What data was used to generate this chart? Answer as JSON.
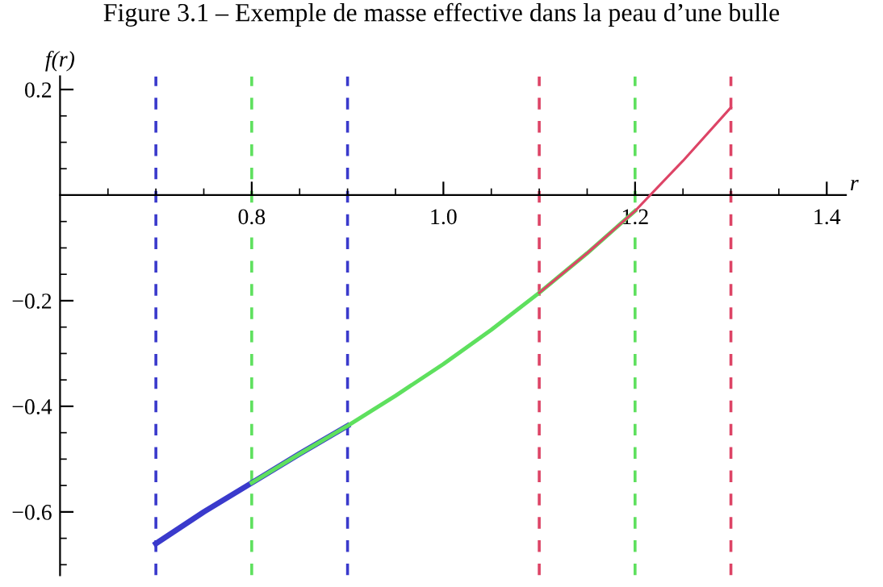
{
  "chart_data": {
    "type": "line",
    "title": "Figure 3.1 – Exemple de masse effective dans la peau d’une bulle",
    "xlabel": "r",
    "ylabel": "f(r)",
    "series": [
      {
        "color": "#3a3acc",
        "x": [
          0.7,
          0.75,
          0.8,
          0.85,
          0.9
        ],
        "values": [
          -0.66,
          -0.6,
          -0.545,
          -0.49,
          -0.437
        ]
      },
      {
        "color": "#5ee05e",
        "x": [
          0.8,
          0.85,
          0.9,
          0.95,
          1.0,
          1.05,
          1.1,
          1.15,
          1.2
        ],
        "values": [
          -0.545,
          -0.49,
          -0.437,
          -0.38,
          -0.32,
          -0.255,
          -0.185,
          -0.11,
          -0.03
        ]
      },
      {
        "color": "#dd4466",
        "x": [
          1.1,
          1.15,
          1.2,
          1.25,
          1.3
        ],
        "values": [
          -0.185,
          -0.11,
          -0.03,
          0.065,
          0.166
        ]
      }
    ],
    "ref_lines": [
      {
        "axis": "x",
        "value": 0.7,
        "color": "#3a3acc",
        "line_style": "dashed"
      },
      {
        "axis": "x",
        "value": 0.9,
        "color": "#3a3acc",
        "line_style": "dashed"
      },
      {
        "axis": "x",
        "value": 0.8,
        "color": "#5ee05e",
        "line_style": "dashed"
      },
      {
        "axis": "x",
        "value": 1.2,
        "color": "#5ee05e",
        "line_style": "dashed"
      },
      {
        "axis": "x",
        "value": 1.1,
        "color": "#dd4466",
        "line_style": "dashed"
      },
      {
        "axis": "x",
        "value": 1.3,
        "color": "#dd4466",
        "line_style": "dashed"
      }
    ],
    "xlim": [
      0.6,
      1.42
    ],
    "ylim": [
      -0.72,
      0.225
    ],
    "xticks": [
      {
        "value": 0.65,
        "label": null
      },
      {
        "value": 0.7,
        "label": null
      },
      {
        "value": 0.75,
        "label": null
      },
      0.8,
      {
        "value": 0.85,
        "label": null
      },
      {
        "value": 0.9,
        "label": null
      },
      {
        "value": 0.95,
        "label": null
      },
      {
        "value": 1.0,
        "label": "1.0"
      },
      {
        "value": 1.05,
        "label": null
      },
      {
        "value": 1.1,
        "label": null
      },
      {
        "value": 1.15,
        "label": null
      },
      1.2,
      {
        "value": 1.25,
        "label": null
      },
      {
        "value": 1.3,
        "label": null
      },
      {
        "value": 1.35,
        "label": null
      },
      1.4
    ],
    "yticks": [
      {
        "value": -0.7,
        "label": null
      },
      {
        "value": -0.65,
        "label": null
      },
      {
        "value": -0.6,
        "label": "−0.6"
      },
      {
        "value": -0.55,
        "label": null
      },
      {
        "value": -0.5,
        "label": null
      },
      {
        "value": -0.45,
        "label": null
      },
      {
        "value": -0.4,
        "label": "−0.4"
      },
      {
        "value": -0.35,
        "label": null
      },
      {
        "value": -0.3,
        "label": null
      },
      {
        "value": -0.25,
        "label": null
      },
      {
        "value": -0.2,
        "label": "−0.2"
      },
      {
        "value": -0.15,
        "label": null
      },
      {
        "value": -0.1,
        "label": null
      },
      {
        "value": -0.05,
        "label": null
      },
      {
        "value": 0.05,
        "label": null
      },
      {
        "value": 0.1,
        "label": null
      },
      {
        "value": 0.15,
        "label": null
      },
      0.2
    ],
    "grid": false,
    "legend": false,
    "marker": "none",
    "line_style": "solid"
  }
}
